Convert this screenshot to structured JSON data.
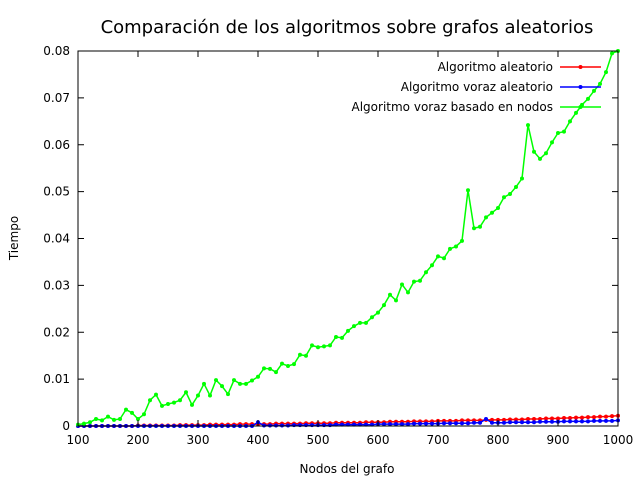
{
  "chart_data": {
    "type": "line",
    "title": "Comparación de los algoritmos sobre grafos aleatorios",
    "xlabel": "Nodos del grafo",
    "ylabel": "Tiempo",
    "xlim": [
      100,
      1000
    ],
    "ylim": [
      0,
      0.08
    ],
    "xticks": [
      "100",
      "200",
      "300",
      "400",
      "500",
      "600",
      "700",
      "800",
      "900",
      "1000"
    ],
    "yticks": [
      "0",
      "0.01",
      "0.02",
      "0.03",
      "0.04",
      "0.05",
      "0.06",
      "0.07",
      "0.08"
    ],
    "grid": false,
    "legend_position": "top-right",
    "x": [
      100,
      110,
      120,
      130,
      140,
      150,
      160,
      170,
      180,
      190,
      200,
      210,
      220,
      230,
      240,
      250,
      260,
      270,
      280,
      290,
      300,
      310,
      320,
      330,
      340,
      350,
      360,
      370,
      380,
      390,
      400,
      410,
      420,
      430,
      440,
      450,
      460,
      470,
      480,
      490,
      500,
      510,
      520,
      530,
      540,
      550,
      560,
      570,
      580,
      590,
      600,
      610,
      620,
      630,
      640,
      650,
      660,
      670,
      680,
      690,
      700,
      710,
      720,
      730,
      740,
      750,
      760,
      770,
      780,
      790,
      800,
      810,
      820,
      830,
      840,
      850,
      860,
      870,
      880,
      890,
      900,
      910,
      920,
      930,
      940,
      950,
      960,
      970,
      980,
      990,
      1000
    ],
    "series": [
      {
        "name": "Algoritmo aleatorio",
        "color": "#ff0000",
        "values": [
          0,
          0,
          0,
          0,
          0,
          0,
          0,
          0,
          0,
          0,
          0.0001,
          0.0001,
          0.0001,
          0.0001,
          0.0001,
          0.0001,
          0.0001,
          0.0002,
          0.0002,
          0.0002,
          0.0002,
          0.0002,
          0.0003,
          0.0003,
          0.0003,
          0.0003,
          0.0003,
          0.0004,
          0.0004,
          0.0004,
          0.0004,
          0.0004,
          0.0004,
          0.0005,
          0.0005,
          0.0005,
          0.0005,
          0.0005,
          0.0006,
          0.0006,
          0.0006,
          0.0006,
          0.0006,
          0.0007,
          0.0007,
          0.0007,
          0.0007,
          0.0007,
          0.0008,
          0.0008,
          0.0008,
          0.0008,
          0.0009,
          0.0009,
          0.0009,
          0.0009,
          0.001,
          0.001,
          0.001,
          0.001,
          0.0011,
          0.0011,
          0.0011,
          0.0011,
          0.0012,
          0.0012,
          0.0012,
          0.0012,
          0.0013,
          0.0013,
          0.0013,
          0.0013,
          0.0014,
          0.0014,
          0.0014,
          0.0015,
          0.0015,
          0.0015,
          0.0016,
          0.0016,
          0.0016,
          0.0017,
          0.0017,
          0.0018,
          0.0018,
          0.0019,
          0.0019,
          0.002,
          0.002,
          0.0021,
          0.0022
        ]
      },
      {
        "name": "Algoritmo voraz aleatorio",
        "color": "#0000ff",
        "values": [
          0,
          0,
          0,
          0,
          0,
          0,
          0,
          0,
          0,
          0,
          0,
          0,
          0,
          0,
          0,
          0,
          0,
          0,
          0,
          0,
          0,
          0,
          0,
          0,
          0,
          0,
          0,
          0,
          0,
          0,
          0.0008,
          0.0001,
          0.0001,
          0.0001,
          0.0001,
          0.0001,
          0.0002,
          0.0002,
          0.0002,
          0.0002,
          0.0002,
          0.0002,
          0.0002,
          0.0003,
          0.0003,
          0.0003,
          0.0003,
          0.0003,
          0.0003,
          0.0003,
          0.0004,
          0.0004,
          0.0004,
          0.0004,
          0.0004,
          0.0004,
          0.0005,
          0.0005,
          0.0005,
          0.0005,
          0.0005,
          0.0006,
          0.0006,
          0.0006,
          0.0006,
          0.0006,
          0.0007,
          0.0007,
          0.0015,
          0.0007,
          0.0007,
          0.0007,
          0.0008,
          0.0008,
          0.0008,
          0.0008,
          0.0008,
          0.0009,
          0.0009,
          0.0009,
          0.0009,
          0.001,
          0.001,
          0.001,
          0.001,
          0.001,
          0.0011,
          0.0011,
          0.0011,
          0.0011,
          0.0012
        ]
      },
      {
        "name": "Algoritmo voraz basado en nodos",
        "color": "#00ff00",
        "values": [
          0.0003,
          0.0005,
          0.0008,
          0.0015,
          0.0012,
          0.002,
          0.0013,
          0.0015,
          0.0035,
          0.0028,
          0.0015,
          0.0025,
          0.0055,
          0.0067,
          0.0043,
          0.0047,
          0.005,
          0.0055,
          0.0072,
          0.0045,
          0.0065,
          0.009,
          0.0065,
          0.0098,
          0.0085,
          0.0068,
          0.0098,
          0.009,
          0.009,
          0.0097,
          0.0105,
          0.0123,
          0.0122,
          0.0115,
          0.0133,
          0.0128,
          0.0132,
          0.0152,
          0.015,
          0.0172,
          0.0168,
          0.017,
          0.0172,
          0.019,
          0.0188,
          0.0203,
          0.0213,
          0.022,
          0.022,
          0.0232,
          0.0242,
          0.0258,
          0.028,
          0.0268,
          0.0302,
          0.0285,
          0.0308,
          0.031,
          0.0328,
          0.0343,
          0.0362,
          0.0358,
          0.0378,
          0.0383,
          0.0395,
          0.0503,
          0.0422,
          0.0425,
          0.0445,
          0.0455,
          0.0465,
          0.0488,
          0.0495,
          0.051,
          0.0528,
          0.0642,
          0.0585,
          0.057,
          0.0582,
          0.0605,
          0.0625,
          0.0628,
          0.065,
          0.0668,
          0.0685,
          0.0698,
          0.0715,
          0.073,
          0.0755,
          0.0795,
          0.08
        ]
      }
    ]
  }
}
